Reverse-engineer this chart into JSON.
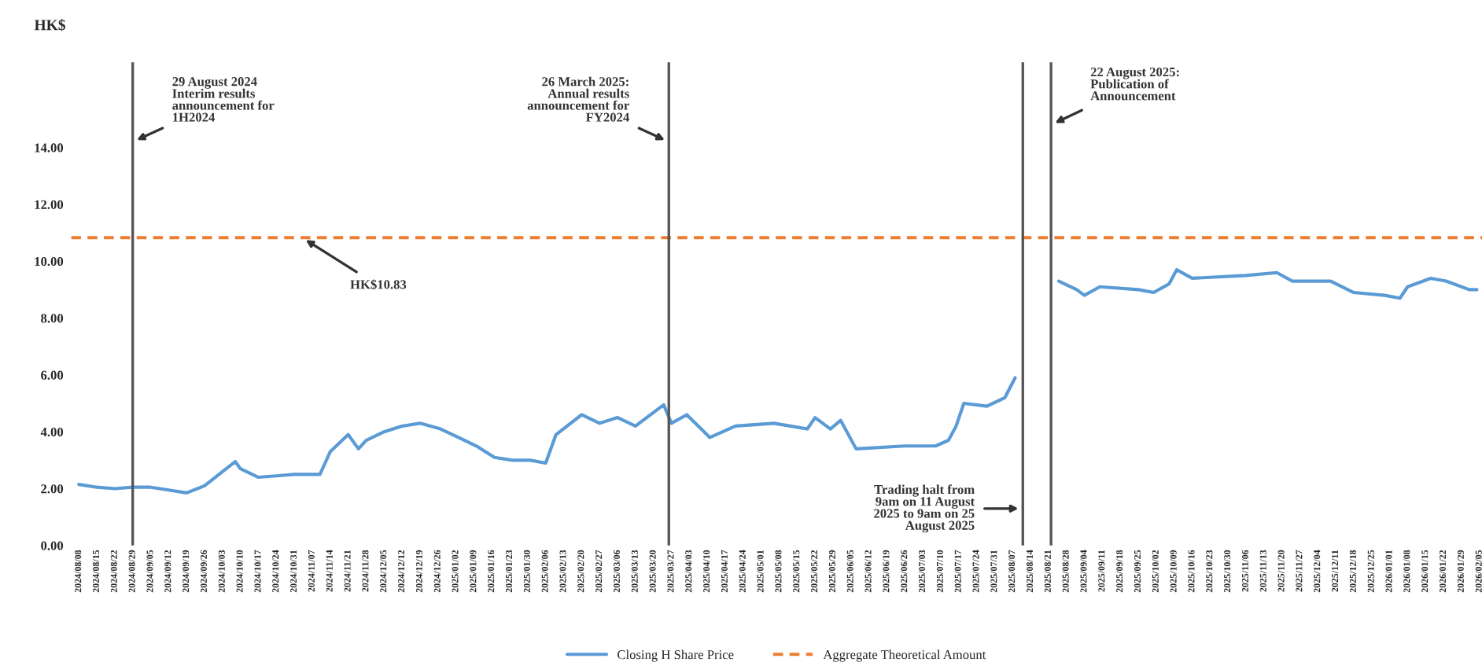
{
  "chart_data": {
    "type": "line",
    "ylabel": "HK$",
    "series": [
      {
        "name": "Closing H Share Price",
        "color": "#5b9bd5",
        "line_style": "solid",
        "x": [
          "2024-08-08",
          "2024-08-15",
          "2024-08-22",
          "2024-08-29",
          "2024-09-05",
          "2024-09-12",
          "2024-09-19",
          "2024-09-26",
          "2024-10-03",
          "2024-10-08",
          "2024-10-10",
          "2024-10-17",
          "2024-10-24",
          "2024-10-31",
          "2024-11-10",
          "2024-11-14",
          "2024-11-21",
          "2024-11-25",
          "2024-11-28",
          "2024-12-05",
          "2024-12-12",
          "2024-12-19",
          "2024-12-27",
          "2025-01-03",
          "2025-01-10",
          "2025-01-17",
          "2025-01-24",
          "2025-01-31",
          "2025-02-06",
          "2025-02-10",
          "2025-02-20",
          "2025-02-27",
          "2025-03-06",
          "2025-03-13",
          "2025-03-24",
          "2025-03-27",
          "2025-04-02",
          "2025-04-11",
          "2025-04-21",
          "2025-05-06",
          "2025-05-19",
          "2025-05-22",
          "2025-05-28",
          "2025-06-01",
          "2025-06-07",
          "2025-06-26",
          "2025-07-08",
          "2025-07-13",
          "2025-07-16",
          "2025-07-19",
          "2025-07-28",
          "2025-08-04",
          "2025-08-08",
          "2025-08-15",
          "2025-08-25",
          "2025-09-01",
          "2025-09-04",
          "2025-09-10",
          "2025-09-25",
          "2025-10-01",
          "2025-10-07",
          "2025-10-10",
          "2025-10-16",
          "2025-11-06",
          "2025-11-18",
          "2025-11-24",
          "2025-12-09",
          "2025-12-18",
          "2025-12-30",
          "2026-01-05",
          "2026-01-08",
          "2026-01-17",
          "2026-01-23",
          "2026-02-01",
          "2026-02-04"
        ],
        "values": [
          2.15,
          2.05,
          2.0,
          2.05,
          2.05,
          1.95,
          1.85,
          2.1,
          2.6,
          2.95,
          2.7,
          2.4,
          2.45,
          2.5,
          2.5,
          3.3,
          3.9,
          3.4,
          3.7,
          4.0,
          4.2,
          4.3,
          4.1,
          3.8,
          3.5,
          3.1,
          3.0,
          3.0,
          2.9,
          3.9,
          4.6,
          4.3,
          4.5,
          4.2,
          4.95,
          4.3,
          4.6,
          3.8,
          4.2,
          4.3,
          4.1,
          4.5,
          4.1,
          4.4,
          3.4,
          3.5,
          3.5,
          3.7,
          4.2,
          5.0,
          4.9,
          5.2,
          5.9,
          null,
          9.3,
          9.0,
          8.8,
          9.1,
          9.0,
          8.9,
          9.2,
          9.7,
          9.4,
          9.5,
          9.6,
          9.3,
          9.3,
          8.9,
          8.8,
          8.7,
          9.1,
          9.4,
          9.3,
          9.0,
          9.0
        ]
      },
      {
        "name": "Aggregate Theoretical Amount",
        "color": "#ed7d31",
        "line_style": "dashed",
        "x": [
          "2024-08-05",
          "2026-02-06"
        ],
        "values": [
          10.83,
          10.83
        ]
      }
    ],
    "ref_lines": [
      {
        "axis": "x",
        "value": "2024-08-29",
        "color": "#555555",
        "line_style": "solid"
      },
      {
        "axis": "x",
        "value": "2025-03-26",
        "color": "#555555",
        "line_style": "solid"
      },
      {
        "axis": "x",
        "value": "2025-08-11",
        "color": "#555555",
        "line_style": "solid"
      },
      {
        "axis": "x",
        "value": "2025-08-22",
        "color": "#555555",
        "line_style": "solid"
      }
    ],
    "annotations": [
      {
        "text": "29 August 2024\nInterim results\nannouncement for\n1H2024",
        "x": "2024-08-29",
        "y": 14.2
      },
      {
        "text": "26 March 2025:\nAnnual results\nannouncement for\nFY2024",
        "x": "2025-03-26",
        "y": 14.2
      },
      {
        "text": "22 August 2025:\nPublication of\nAnnouncement",
        "x": "2025-08-22",
        "y": 14.8
      },
      {
        "text": "HK$10.83",
        "x": "2024-11-03",
        "y": 10.83
      },
      {
        "text": "Trading halt from\n9am on 11 August\n2025 to 9am on 25\nAugust 2025",
        "x": "2025-08-11",
        "y": 1.3
      }
    ],
    "ylim": [
      0,
      17
    ],
    "yticks": [
      {
        "value": 0,
        "label": "0.00"
      },
      {
        "value": 2,
        "label": "2.00"
      },
      {
        "value": 4,
        "label": "4.00"
      },
      {
        "value": 6,
        "label": "6.00"
      },
      {
        "value": 8,
        "label": "8.00"
      },
      {
        "value": 10,
        "label": "10.00"
      },
      {
        "value": 12,
        "label": "12.00"
      },
      {
        "value": 14,
        "label": "14.00"
      }
    ],
    "xlim": [
      "2024-08-05",
      "2026-02-06"
    ],
    "xticks": [
      {
        "value": "2024-08-08",
        "label": "2024/08/08"
      },
      {
        "value": "2024-08-15",
        "label": "2024/08/15"
      },
      {
        "value": "2024-08-22",
        "label": "2024/08/22"
      },
      {
        "value": "2024-08-29",
        "label": "2024/08/29"
      },
      {
        "value": "2024-09-05",
        "label": "2024/09/05"
      },
      {
        "value": "2024-09-12",
        "label": "2024/09/12"
      },
      {
        "value": "2024-09-19",
        "label": "2024/09/19"
      },
      {
        "value": "2024-09-26",
        "label": "2024/09/26"
      },
      {
        "value": "2024-10-03",
        "label": "2024/10/03"
      },
      {
        "value": "2024-10-10",
        "label": "2024/10/10"
      },
      {
        "value": "2024-10-17",
        "label": "2024/10/17"
      },
      {
        "value": "2024-10-24",
        "label": "2024/10/24"
      },
      {
        "value": "2024-10-31",
        "label": "2024/10/31"
      },
      {
        "value": "2024-11-07",
        "label": "2024/11/07"
      },
      {
        "value": "2024-11-14",
        "label": "2024/11/14"
      },
      {
        "value": "2024-11-21",
        "label": "2024/11/21"
      },
      {
        "value": "2024-11-28",
        "label": "2024/11/28"
      },
      {
        "value": "2024-12-05",
        "label": "2024/12/05"
      },
      {
        "value": "2024-12-12",
        "label": "2024/12/12"
      },
      {
        "value": "2024-12-19",
        "label": "2024/12/19"
      },
      {
        "value": "2024-12-26",
        "label": "2024/12/26"
      },
      {
        "value": "2025-01-02",
        "label": "2025/01/02"
      },
      {
        "value": "2025-01-09",
        "label": "2025/01/09"
      },
      {
        "value": "2025-01-16",
        "label": "2025/01/16"
      },
      {
        "value": "2025-01-23",
        "label": "2025/01/23"
      },
      {
        "value": "2025-01-30",
        "label": "2025/01/30"
      },
      {
        "value": "2025-02-06",
        "label": "2025/02/06"
      },
      {
        "value": "2025-02-13",
        "label": "2025/02/13"
      },
      {
        "value": "2025-02-20",
        "label": "2025/02/20"
      },
      {
        "value": "2025-02-27",
        "label": "2025/02/27"
      },
      {
        "value": "2025-03-06",
        "label": "2025/03/06"
      },
      {
        "value": "2025-03-13",
        "label": "2025/03/13"
      },
      {
        "value": "2025-03-20",
        "label": "2025/03/20"
      },
      {
        "value": "2025-03-27",
        "label": "2025/03/27"
      },
      {
        "value": "2025-04-03",
        "label": "2025/04/03"
      },
      {
        "value": "2025-04-10",
        "label": "2025/04/10"
      },
      {
        "value": "2025-04-17",
        "label": "2025/04/17"
      },
      {
        "value": "2025-04-24",
        "label": "2025/04/24"
      },
      {
        "value": "2025-05-01",
        "label": "2025/05/01"
      },
      {
        "value": "2025-05-08",
        "label": "2025/05/08"
      },
      {
        "value": "2025-05-15",
        "label": "2025/05/15"
      },
      {
        "value": "2025-05-22",
        "label": "2025/05/22"
      },
      {
        "value": "2025-05-29",
        "label": "2025/05/29"
      },
      {
        "value": "2025-06-05",
        "label": "2025/06/05"
      },
      {
        "value": "2025-06-12",
        "label": "2025/06/12"
      },
      {
        "value": "2025-06-19",
        "label": "2025/06/19"
      },
      {
        "value": "2025-06-26",
        "label": "2025/06/26"
      },
      {
        "value": "2025-07-03",
        "label": "2025/07/03"
      },
      {
        "value": "2025-07-10",
        "label": "2025/07/10"
      },
      {
        "value": "2025-07-17",
        "label": "2025/07/17"
      },
      {
        "value": "2025-07-24",
        "label": "2025/07/24"
      },
      {
        "value": "2025-07-31",
        "label": "2025/07/31"
      },
      {
        "value": "2025-08-07",
        "label": "2025/08/07"
      },
      {
        "value": "2025-08-14",
        "label": "2025/08/14"
      },
      {
        "value": "2025-08-21",
        "label": "2025/08/21"
      },
      {
        "value": "2025-08-28",
        "label": "2025/08/28"
      },
      {
        "value": "2025-09-04",
        "label": "2025/09/04"
      },
      {
        "value": "2025-09-11",
        "label": "2025/09/11"
      },
      {
        "value": "2025-09-18",
        "label": "2025/09/18"
      },
      {
        "value": "2025-09-25",
        "label": "2025/09/25"
      },
      {
        "value": "2025-10-02",
        "label": "2025/10/02"
      },
      {
        "value": "2025-10-09",
        "label": "2025/10/09"
      },
      {
        "value": "2025-10-16",
        "label": "2025/10/16"
      },
      {
        "value": "2025-10-23",
        "label": "2025/10/23"
      },
      {
        "value": "2025-10-30",
        "label": "2025/10/30"
      },
      {
        "value": "2025-11-06",
        "label": "2025/11/06"
      },
      {
        "value": "2025-11-13",
        "label": "2025/11/13"
      },
      {
        "value": "2025-11-20",
        "label": "2025/11/20"
      },
      {
        "value": "2025-11-27",
        "label": "2025/11/27"
      },
      {
        "value": "2025-12-04",
        "label": "2025/12/04"
      },
      {
        "value": "2025-12-11",
        "label": "2025/12/11"
      },
      {
        "value": "2025-12-18",
        "label": "2025/12/18"
      },
      {
        "value": "2025-12-25",
        "label": "2025/12/25"
      },
      {
        "value": "2026-01-01",
        "label": "2026/01/01"
      },
      {
        "value": "2026-01-08",
        "label": "2026/01/08"
      },
      {
        "value": "2026-01-15",
        "label": "2026/01/15"
      },
      {
        "value": "2026-01-22",
        "label": "2026/01/22"
      },
      {
        "value": "2026-01-29",
        "label": "2026/01/29"
      },
      {
        "value": "2026-02-05",
        "label": "2026/02/05"
      }
    ],
    "grid": false,
    "legend": "bottom",
    "marker": "none"
  }
}
